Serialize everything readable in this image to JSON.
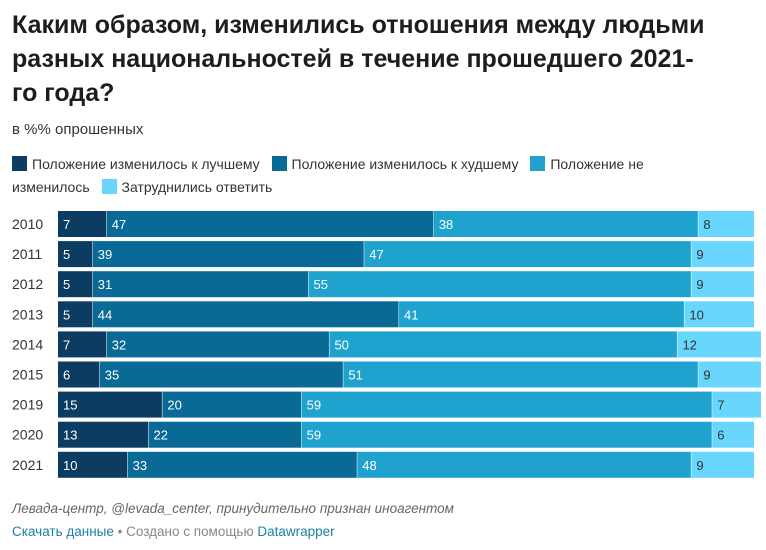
{
  "title": "Каким образом, изменились отношения между людьми разных национальностей в течение прошедшего 2021-го года?",
  "subtitle": "в %% опрошенных",
  "footer": {
    "source": "Левада-центр, @levada_center, принудительно признан иноагентом",
    "download_label": "Скачать данные",
    "separator": " • Создано с помощью ",
    "tool_label": "Datawrapper"
  },
  "chart_data": {
    "type": "bar",
    "stacked": true,
    "orientation": "horizontal",
    "categories": [
      "2010",
      "2011",
      "2012",
      "2013",
      "2014",
      "2015",
      "2019",
      "2020",
      "2021"
    ],
    "series": [
      {
        "name": "Положение изменилось к лучшему",
        "color": "#0c3c61",
        "values": [
          7,
          5,
          5,
          5,
          7,
          6,
          15,
          13,
          10
        ]
      },
      {
        "name": "Положение изменилось к худшему",
        "color": "#086a95",
        "values": [
          47,
          39,
          31,
          44,
          32,
          35,
          20,
          22,
          33
        ]
      },
      {
        "name": "Положение не изменилось",
        "color": "#20a2cf",
        "values": [
          38,
          47,
          55,
          41,
          50,
          51,
          59,
          59,
          48
        ]
      },
      {
        "name": "Затруднились ответить",
        "color": "#69d7fd",
        "values": [
          8,
          9,
          9,
          10,
          12,
          9,
          7,
          6,
          9
        ]
      }
    ],
    "xlim": [
      0,
      100
    ],
    "grid": false,
    "legend_position": "top"
  }
}
